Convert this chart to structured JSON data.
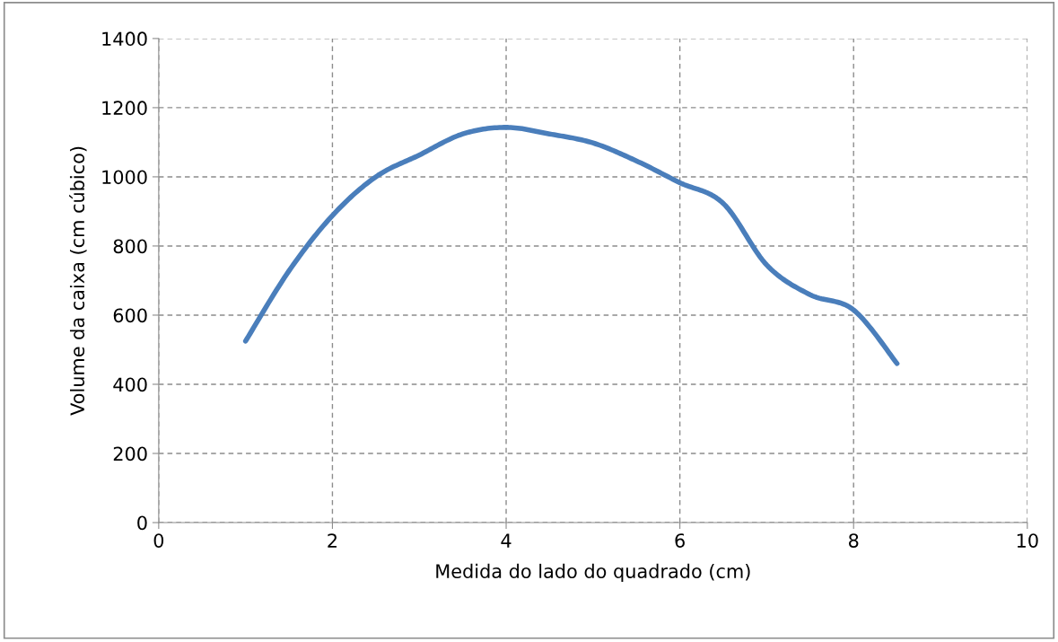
{
  "chart_data": {
    "type": "line",
    "xlabel": "Medida do lado do quadrado (cm)",
    "ylabel": "Volume da caixa (cm cúbico)",
    "x": [
      1,
      1.5,
      2,
      2.5,
      3,
      3.5,
      4,
      4.5,
      5,
      5.5,
      6,
      6.5,
      7,
      7.5,
      8,
      8.5
    ],
    "series": [
      {
        "color": "#4a7ebb",
        "values": [
          525,
          728,
          888,
          1000,
          1063,
          1124,
          1143,
          1124,
          1098,
          1046,
          983,
          923,
          745,
          659,
          615,
          460
        ]
      }
    ],
    "xlim": [
      0,
      10
    ],
    "xticks": [
      0,
      2,
      4,
      6,
      8,
      10
    ],
    "ylim": [
      0,
      1400
    ],
    "yticks": [
      0,
      200,
      400,
      600,
      800,
      1000,
      1200,
      1400
    ],
    "grid": true,
    "marker": "none",
    "line_style": "solid",
    "legend": false
  }
}
